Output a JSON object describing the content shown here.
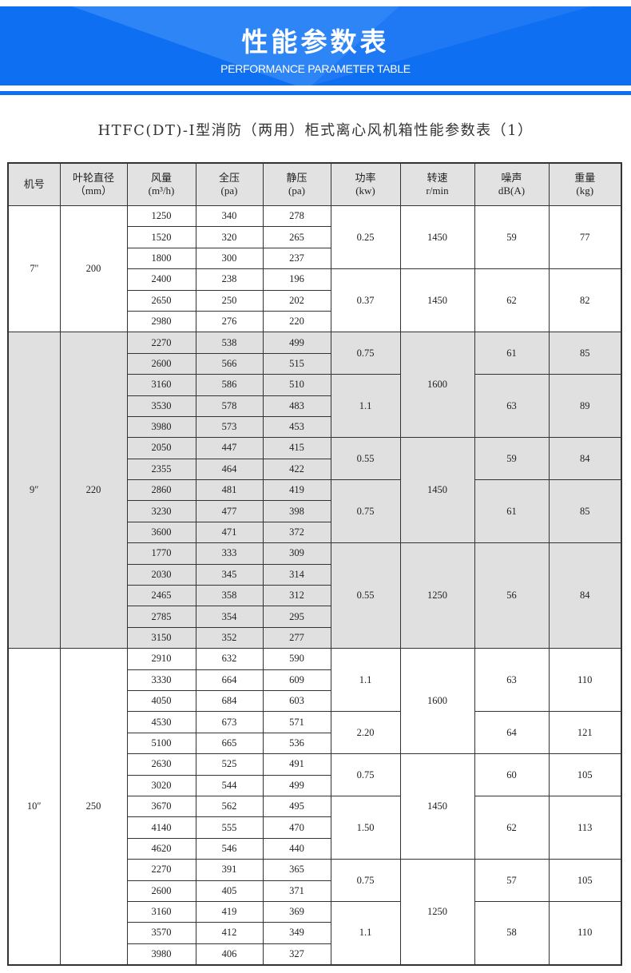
{
  "banner": {
    "title": "性能参数表",
    "subtitle": "PERFORMANCE PARAMETER TABLE",
    "color": "#0f6ff2"
  },
  "document_title": "HTFC(DT)-Ⅰ型消防（两用）柜式离心风机箱性能参数表（1）",
  "table": {
    "headers": [
      {
        "line1": "机号",
        "line2": ""
      },
      {
        "line1": "叶轮直径",
        "line2": "（mm）"
      },
      {
        "line1": "风量",
        "line2": "(m³/h)"
      },
      {
        "line1": "全压",
        "line2": "(pa)"
      },
      {
        "line1": "静压",
        "line2": "(pa)"
      },
      {
        "line1": "功率",
        "line2": "(kw)"
      },
      {
        "line1": "转速",
        "line2": "r/min"
      },
      {
        "line1": "噪声",
        "line2": "dB(A)"
      },
      {
        "line1": "重量",
        "line2": "(kg)"
      }
    ],
    "groups": [
      {
        "model": "7''",
        "impeller": "200",
        "shaded": false,
        "rows": [
          [
            "1250",
            "340",
            "278"
          ],
          [
            "1520",
            "320",
            "265"
          ],
          [
            "1800",
            "300",
            "237"
          ],
          [
            "2400",
            "238",
            "196"
          ],
          [
            "2650",
            "250",
            "202"
          ],
          [
            "2980",
            "276",
            "220"
          ]
        ],
        "power": [
          {
            "value": "0.25",
            "rows": 3
          },
          {
            "value": "0.37",
            "rows": 3
          }
        ],
        "speed": [
          {
            "value": "1450",
            "rows": 3
          },
          {
            "value": "1450",
            "rows": 3
          }
        ],
        "noise": [
          {
            "value": "59",
            "rows": 3
          },
          {
            "value": "62",
            "rows": 3
          }
        ],
        "weight": [
          {
            "value": "77",
            "rows": 3
          },
          {
            "value": "82",
            "rows": 3
          }
        ]
      },
      {
        "model": "9″",
        "impeller": "220",
        "shaded": true,
        "rows": [
          [
            "2270",
            "538",
            "499"
          ],
          [
            "2600",
            "566",
            "515"
          ],
          [
            "3160",
            "586",
            "510"
          ],
          [
            "3530",
            "578",
            "483"
          ],
          [
            "3980",
            "573",
            "453"
          ],
          [
            "2050",
            "447",
            "415"
          ],
          [
            "2355",
            "464",
            "422"
          ],
          [
            "2860",
            "481",
            "419"
          ],
          [
            "3230",
            "477",
            "398"
          ],
          [
            "3600",
            "471",
            "372"
          ],
          [
            "1770",
            "333",
            "309"
          ],
          [
            "2030",
            "345",
            "314"
          ],
          [
            "2465",
            "358",
            "312"
          ],
          [
            "2785",
            "354",
            "295"
          ],
          [
            "3150",
            "352",
            "277"
          ]
        ],
        "power": [
          {
            "value": "0.75",
            "rows": 2
          },
          {
            "value": "1.1",
            "rows": 3
          },
          {
            "value": "0.55",
            "rows": 2
          },
          {
            "value": "0.75",
            "rows": 3
          },
          {
            "value": "0.55",
            "rows": 5
          }
        ],
        "speed": [
          {
            "value": "1600",
            "rows": 5
          },
          {
            "value": "1450",
            "rows": 5
          },
          {
            "value": "1250",
            "rows": 5
          }
        ],
        "noise": [
          {
            "value": "61",
            "rows": 2
          },
          {
            "value": "63",
            "rows": 3
          },
          {
            "value": "59",
            "rows": 2
          },
          {
            "value": "61",
            "rows": 3
          },
          {
            "value": "56",
            "rows": 5
          }
        ],
        "weight": [
          {
            "value": "85",
            "rows": 2
          },
          {
            "value": "89",
            "rows": 3
          },
          {
            "value": "84",
            "rows": 2
          },
          {
            "value": "85",
            "rows": 3
          },
          {
            "value": "84",
            "rows": 5
          }
        ]
      },
      {
        "model": "10″",
        "impeller": "250",
        "shaded": false,
        "rows": [
          [
            "2910",
            "632",
            "590"
          ],
          [
            "3330",
            "664",
            "609"
          ],
          [
            "4050",
            "684",
            "603"
          ],
          [
            "4530",
            "673",
            "571"
          ],
          [
            "5100",
            "665",
            "536"
          ],
          [
            "2630",
            "525",
            "491"
          ],
          [
            "3020",
            "544",
            "499"
          ],
          [
            "3670",
            "562",
            "495"
          ],
          [
            "4140",
            "555",
            "470"
          ],
          [
            "4620",
            "546",
            "440"
          ],
          [
            "2270",
            "391",
            "365"
          ],
          [
            "2600",
            "405",
            "371"
          ],
          [
            "3160",
            "419",
            "369"
          ],
          [
            "3570",
            "412",
            "349"
          ],
          [
            "3980",
            "406",
            "327"
          ]
        ],
        "power": [
          {
            "value": "1.1",
            "rows": 3
          },
          {
            "value": "2.20",
            "rows": 2
          },
          {
            "value": "0.75",
            "rows": 2
          },
          {
            "value": "1.50",
            "rows": 3
          },
          {
            "value": "0.75",
            "rows": 2
          },
          {
            "value": "1.1",
            "rows": 3
          }
        ],
        "speed": [
          {
            "value": "1600",
            "rows": 5
          },
          {
            "value": "1450",
            "rows": 5
          },
          {
            "value": "1250",
            "rows": 5
          }
        ],
        "noise": [
          {
            "value": "63",
            "rows": 3
          },
          {
            "value": "64",
            "rows": 2
          },
          {
            "value": "60",
            "rows": 2
          },
          {
            "value": "62",
            "rows": 3
          },
          {
            "value": "57",
            "rows": 2
          },
          {
            "value": "58",
            "rows": 3
          }
        ],
        "weight": [
          {
            "value": "110",
            "rows": 3
          },
          {
            "value": "121",
            "rows": 2
          },
          {
            "value": "105",
            "rows": 2
          },
          {
            "value": "113",
            "rows": 3
          },
          {
            "value": "105",
            "rows": 2
          },
          {
            "value": "110",
            "rows": 3
          }
        ]
      }
    ]
  }
}
